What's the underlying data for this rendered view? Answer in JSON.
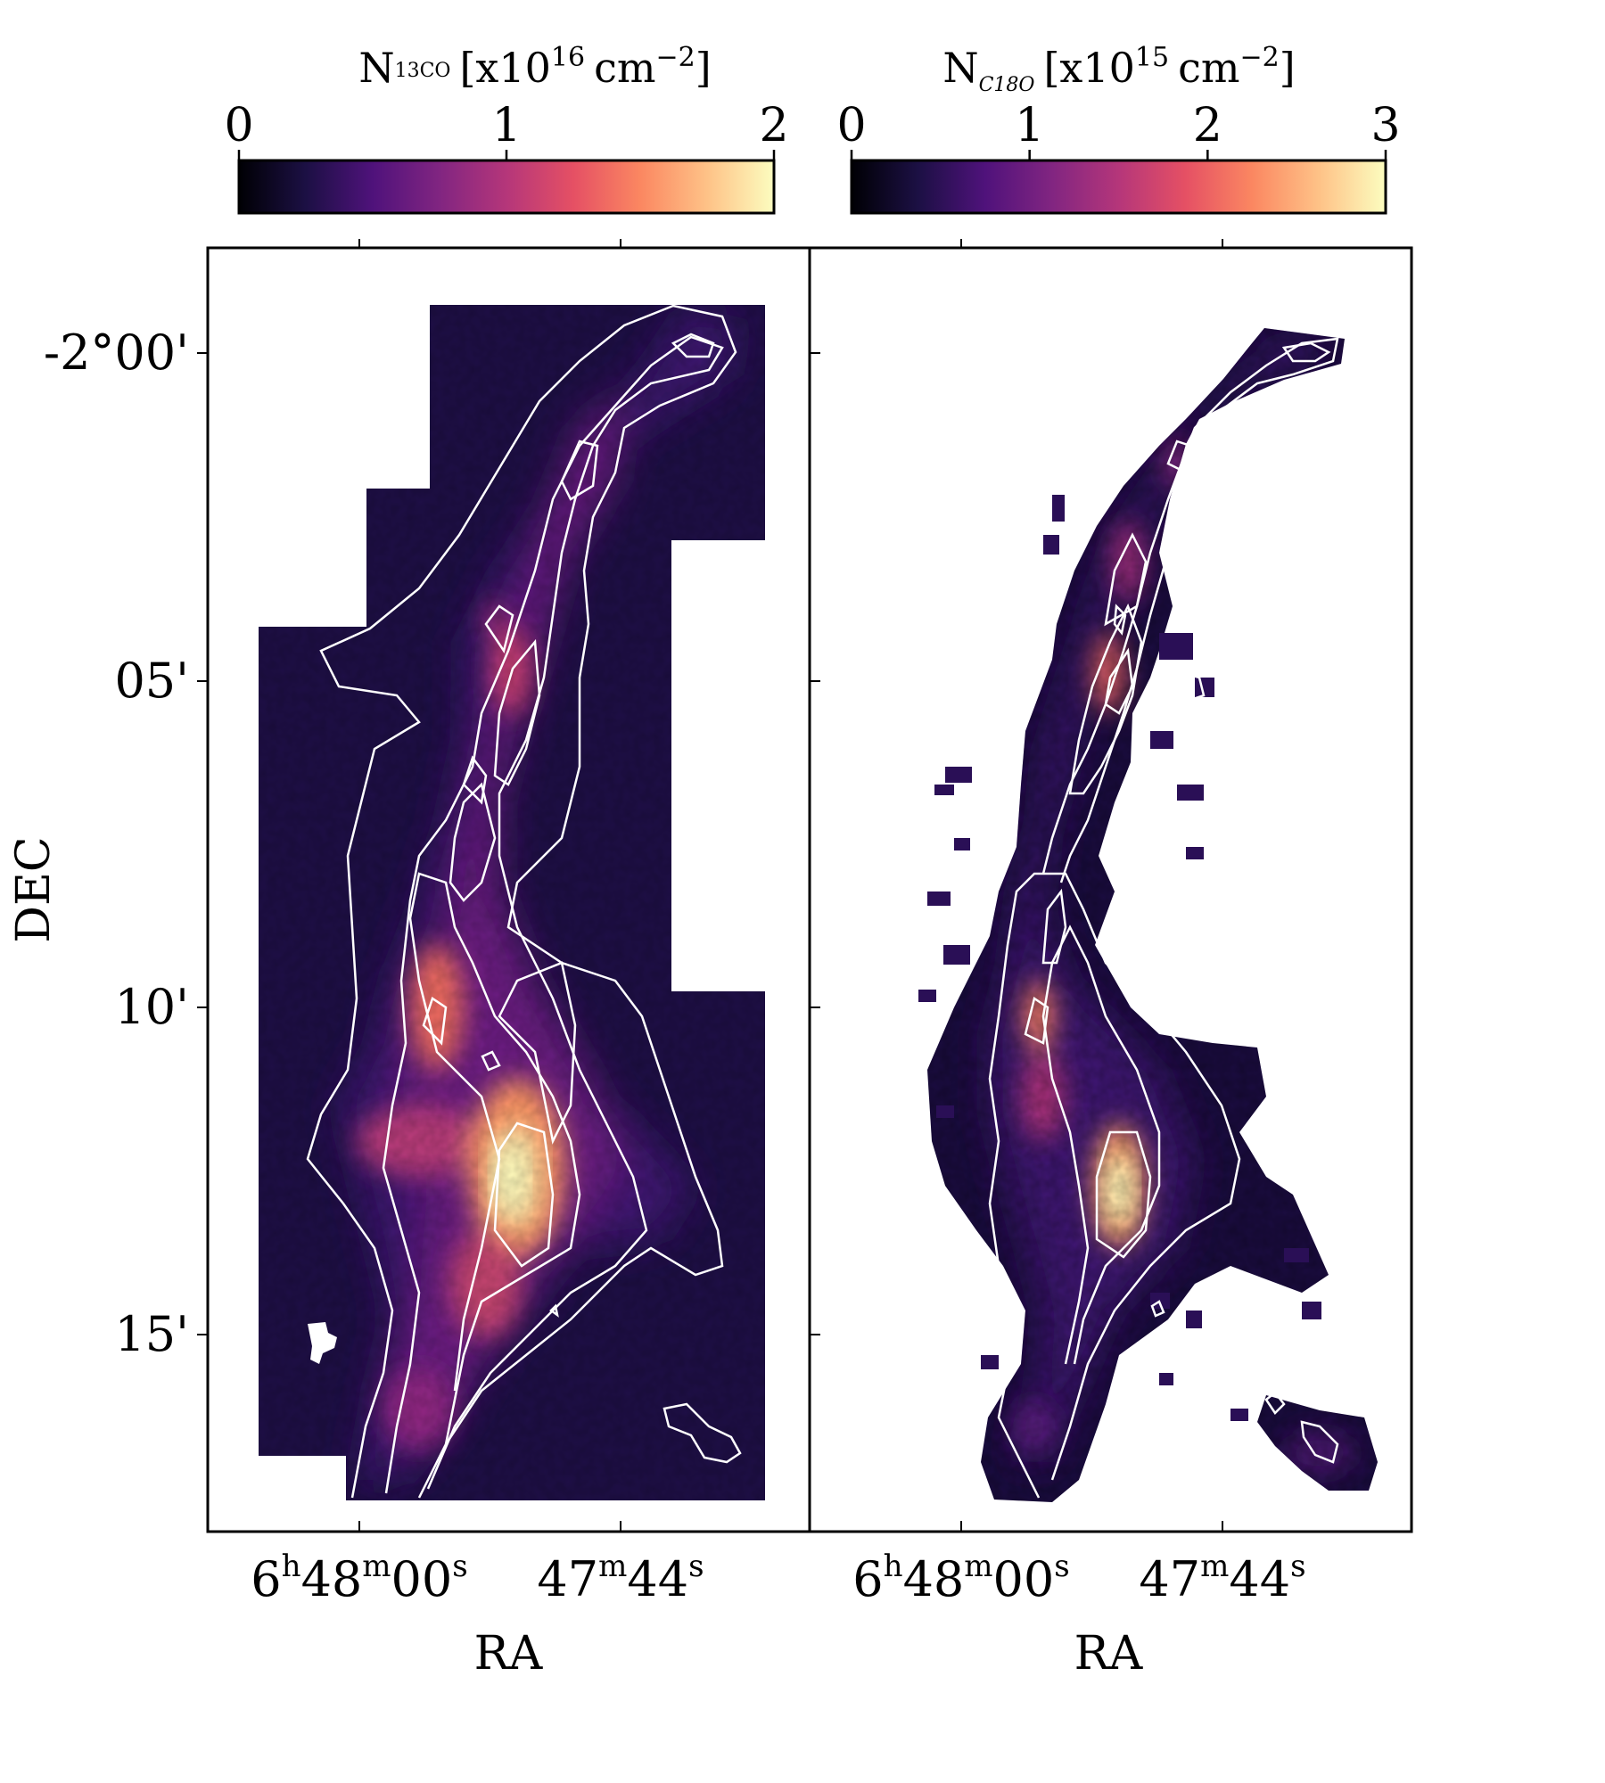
{
  "chart_data": [
    {
      "type": "heatmap",
      "panel": "left",
      "colorbar": {
        "label_symbol": "N",
        "label_sub": "13CO",
        "label_unit_pre": "[x10",
        "label_unit_exp": "16",
        "label_unit_mid": "cm",
        "label_unit_exp2": "−2",
        "label_unit_post": "]",
        "ticks": [
          "0",
          "1",
          "2"
        ],
        "range": [
          0,
          2
        ],
        "colormap": "magma"
      },
      "xlabel": "RA",
      "ylabel": "DEC",
      "xticks": [
        {
          "h": "6",
          "m": "48",
          "s": "00"
        },
        {
          "h": "",
          "m": "47",
          "s": "44"
        }
      ],
      "yticks": [
        "-2°00'",
        "05'",
        "10'",
        "15'"
      ],
      "contours": "white",
      "peak_location": "lower-center"
    },
    {
      "type": "heatmap",
      "panel": "right",
      "colorbar": {
        "label_symbol": "N",
        "label_sub": "C18O",
        "label_unit_pre": "[x10",
        "label_unit_exp": "15",
        "label_unit_mid": "cm",
        "label_unit_exp2": "−2",
        "label_unit_post": "]",
        "ticks": [
          "0",
          "1",
          "2",
          "3"
        ],
        "range": [
          0,
          3
        ],
        "colormap": "magma"
      },
      "xlabel": "RA",
      "xticks": [
        {
          "h": "6",
          "m": "48",
          "s": "00"
        },
        {
          "h": "",
          "m": "47",
          "s": "44"
        }
      ],
      "contours": "white",
      "peak_location": "lower-center"
    }
  ],
  "labels": {
    "ra": "RA",
    "dec": "DEC"
  },
  "colors": {
    "magma_stops": [
      "#000004",
      "#1c1044",
      "#4f127b",
      "#812581",
      "#b5367a",
      "#e55064",
      "#fb8761",
      "#fec287",
      "#fcfdbf"
    ],
    "contour": "#ffffff",
    "frame": "#000000"
  }
}
